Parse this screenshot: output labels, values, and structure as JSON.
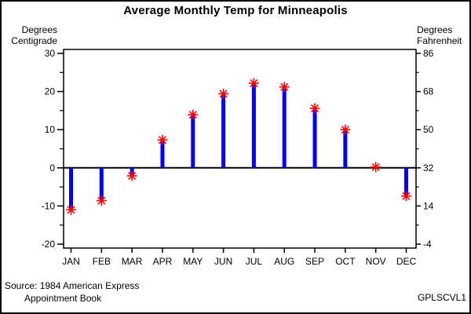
{
  "title": "Average Monthly Temp for Minneapolis",
  "axis_left": {
    "label": [
      "Degrees",
      "Centigrade"
    ]
  },
  "axis_right": {
    "label": [
      "Degrees",
      "Fahrenheit"
    ]
  },
  "footnote": {
    "line1": "Source: 1984 American Express",
    "line2": "Appointment Book"
  },
  "program_id": "GPLSCVL1",
  "colors": {
    "background": "#FFFFFF",
    "axis": "#000000",
    "needle": "#0000FF",
    "marker": "#FF0000",
    "text": "#000000"
  },
  "chart_data": {
    "type": "needle",
    "title": "Average Monthly Temp for Minneapolis",
    "categories": [
      "JAN",
      "FEB",
      "MAR",
      "APR",
      "MAY",
      "JUN",
      "JUL",
      "AUG",
      "SEP",
      "OCT",
      "NOV",
      "DEC"
    ],
    "values": [
      -11.0,
      -8.6,
      -2.1,
      7.3,
      13.9,
      19.4,
      22.2,
      21.2,
      15.6,
      10.0,
      0.2,
      -7.4
    ],
    "values_fahrenheit": [
      12.2,
      16.5,
      28.3,
      45.1,
      57.1,
      66.9,
      71.9,
      70.2,
      60.0,
      50.0,
      32.4,
      18.6
    ],
    "baseline": 0,
    "ylim": [
      -20,
      30
    ],
    "ylabel_left": "Degrees Centigrade",
    "ylabel_right": "Degrees Fahrenheit",
    "left_axis_ticks": [
      30,
      20,
      10,
      0,
      -10,
      -20
    ],
    "right_axis_ticks": [
      86,
      68,
      50,
      32,
      14,
      -4
    ],
    "minor_ticks_between_majors": 1,
    "xlabel": "",
    "grid": false,
    "legend": "none",
    "marker": "star",
    "needle_color": "#0000FF",
    "marker_color": "#FF0000",
    "frame": true
  }
}
